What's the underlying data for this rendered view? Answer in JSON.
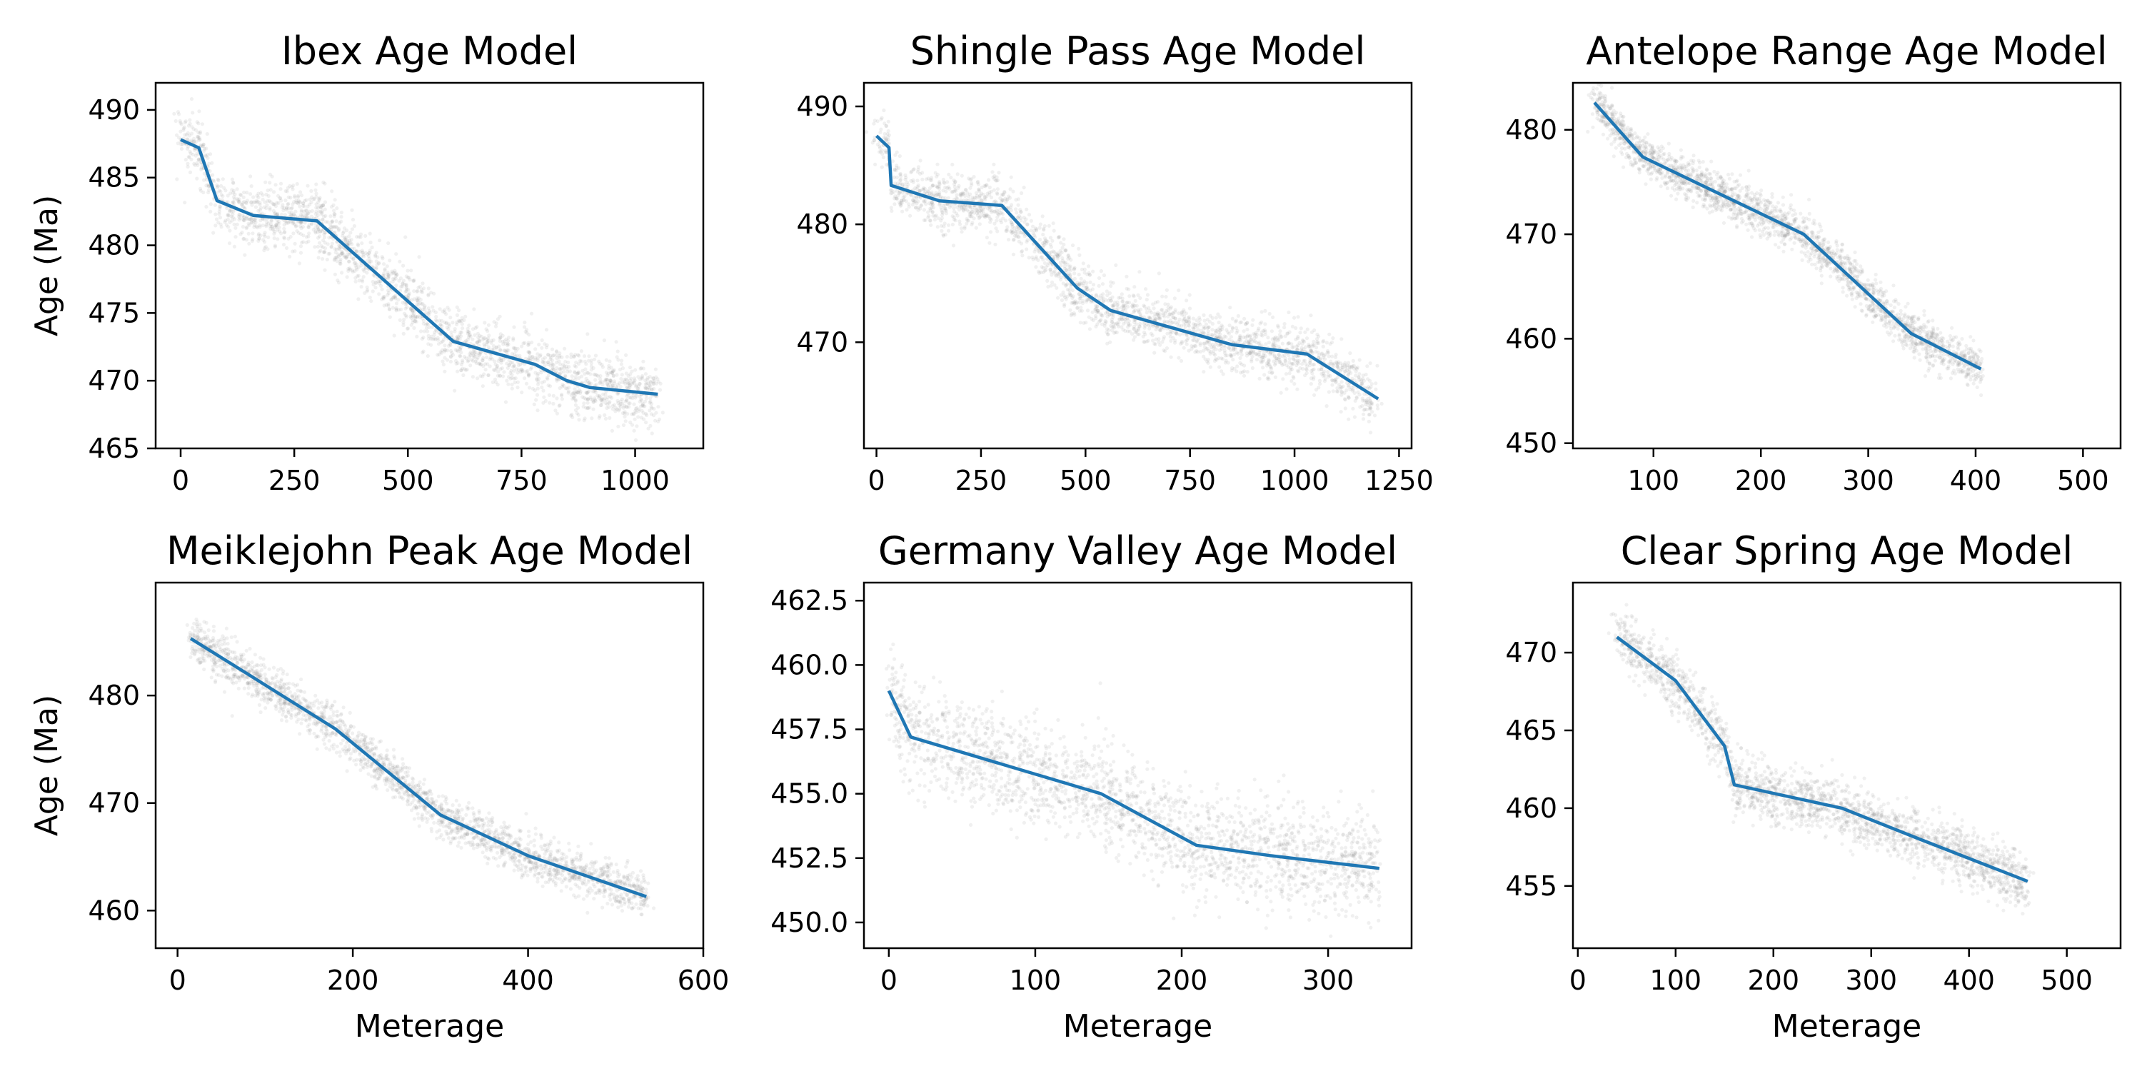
{
  "colors": {
    "model_line": "#1f77b4",
    "samples": "#808080",
    "background": "#ffffff"
  },
  "chart_data": [
    {
      "type": "line",
      "title": "Ibex Age Model",
      "xlabel": "",
      "ylabel": "Age (Ma)",
      "xlim": [
        -55,
        1150
      ],
      "ylim": [
        492,
        465
      ],
      "y_inverted": true,
      "x_ticks": [
        0,
        250,
        500,
        750,
        1000
      ],
      "y_ticks": [
        465,
        470,
        475,
        480,
        485,
        490
      ],
      "x_tick_labels": [
        "0",
        "250",
        "500",
        "750",
        "1000"
      ],
      "y_tick_labels": [
        "465",
        "470",
        "475",
        "480",
        "485",
        "490"
      ],
      "series": [
        {
          "x": [
            0,
            40,
            80,
            160,
            300,
            600,
            780,
            850,
            900,
            1050
          ],
          "y": [
            487.8,
            487.2,
            483.3,
            482.2,
            481.8,
            472.9,
            471.2,
            470.0,
            469.5,
            469.0
          ]
        }
      ],
      "spread": 1.2
    },
    {
      "type": "line",
      "title": "Shingle Pass Age Model",
      "xlabel": "",
      "ylabel": "",
      "xlim": [
        -30,
        1280
      ],
      "ylim": [
        492,
        461
      ],
      "y_inverted": true,
      "x_ticks": [
        0,
        250,
        500,
        750,
        1000,
        1250
      ],
      "y_ticks": [
        470,
        480,
        490
      ],
      "x_tick_labels": [
        "0",
        "250",
        "500",
        "750",
        "1000",
        "1250"
      ],
      "y_tick_labels": [
        "470",
        "480",
        "490"
      ],
      "series": [
        {
          "x": [
            0,
            30,
            35,
            150,
            300,
            480,
            560,
            700,
            850,
            1030,
            1200
          ],
          "y": [
            487.5,
            486.5,
            483.3,
            482.0,
            481.6,
            474.6,
            472.7,
            471.3,
            469.8,
            469.0,
            465.2
          ]
        }
      ],
      "spread": 1.2
    },
    {
      "type": "line",
      "title": "Antelope Range Age Model",
      "xlabel": "",
      "ylabel": "",
      "xlim": [
        25,
        535
      ],
      "ylim": [
        484.5,
        449.5
      ],
      "y_inverted": true,
      "x_ticks": [
        100,
        200,
        300,
        400,
        500
      ],
      "y_ticks": [
        450,
        460,
        470,
        480
      ],
      "x_tick_labels": [
        "100",
        "200",
        "300",
        "400",
        "500"
      ],
      "y_tick_labels": [
        "450",
        "460",
        "470",
        "480"
      ],
      "series": [
        {
          "x": [
            45,
            90,
            240,
            340,
            405
          ],
          "y": [
            482.6,
            477.4,
            470.0,
            460.5,
            457.1
          ]
        }
      ],
      "spread": 1.0
    },
    {
      "type": "line",
      "title": "Meiklejohn Peak Age Model",
      "xlabel": "Meterage",
      "ylabel": "Age (Ma)",
      "xlim": [
        -25,
        600
      ],
      "ylim": [
        490.5,
        456.5
      ],
      "y_inverted": true,
      "x_ticks": [
        0,
        200,
        400,
        600
      ],
      "y_ticks": [
        460,
        470,
        480
      ],
      "x_tick_labels": [
        "0",
        "200",
        "400",
        "600"
      ],
      "y_tick_labels": [
        "460",
        "470",
        "480"
      ],
      "series": [
        {
          "x": [
            15,
            80,
            180,
            300,
            400,
            535
          ],
          "y": [
            485.3,
            482.0,
            476.9,
            468.9,
            465.1,
            461.3
          ]
        }
      ],
      "spread": 1.0
    },
    {
      "type": "line",
      "title": "Germany Valley Age Model",
      "xlabel": "Meterage",
      "ylabel": "",
      "xlim": [
        -17,
        357
      ],
      "ylim": [
        463.2,
        449.0
      ],
      "y_inverted": true,
      "x_ticks": [
        0,
        100,
        200,
        300
      ],
      "y_ticks": [
        450.0,
        452.5,
        455.0,
        457.5,
        460.0,
        462.5
      ],
      "x_tick_labels": [
        "0",
        "100",
        "200",
        "300"
      ],
      "y_tick_labels": [
        "450.0",
        "452.5",
        "455.0",
        "457.5",
        "460.0",
        "462.5"
      ],
      "series": [
        {
          "x": [
            0,
            15,
            80,
            145,
            210,
            260,
            335
          ],
          "y": [
            459.0,
            457.2,
            456.1,
            455.0,
            453.0,
            452.6,
            452.1
          ]
        }
      ],
      "spread": 1.0
    },
    {
      "type": "line",
      "title": "Clear Spring Age Model",
      "xlabel": "Meterage",
      "ylabel": "",
      "xlim": [
        -5,
        555
      ],
      "ylim": [
        474.5,
        451.0
      ],
      "y_inverted": true,
      "x_ticks": [
        0,
        100,
        200,
        300,
        400,
        500
      ],
      "y_ticks": [
        455,
        460,
        465,
        470
      ],
      "x_tick_labels": [
        "0",
        "100",
        "200",
        "300",
        "400",
        "500"
      ],
      "y_tick_labels": [
        "455",
        "460",
        "465",
        "470"
      ],
      "series": [
        {
          "x": [
            40,
            100,
            150,
            160,
            270,
            350,
            460
          ],
          "y": [
            471.0,
            468.2,
            464.0,
            461.5,
            460.0,
            458.0,
            455.3
          ]
        }
      ],
      "spread": 0.9
    }
  ]
}
